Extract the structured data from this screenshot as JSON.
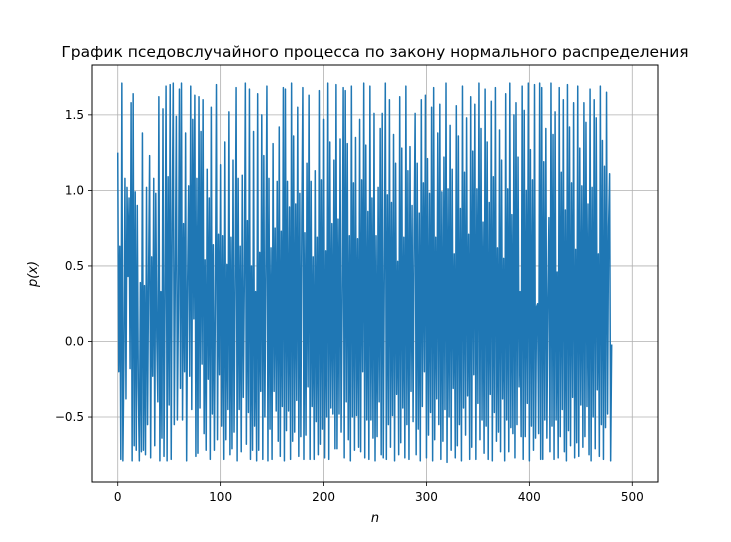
{
  "chart_data": {
    "type": "line",
    "title": "График пседовслучайного процесса по закону нормального распределения",
    "xlabel": "n",
    "ylabel": "p(x)",
    "xlim": [
      -25,
      525
    ],
    "ylim": [
      -0.93,
      1.83
    ],
    "xticks": [
      0,
      100,
      200,
      300,
      400,
      500
    ],
    "xtick_labels": [
      "0",
      "100",
      "200",
      "300",
      "400",
      "500"
    ],
    "yticks": [
      -0.5,
      0.0,
      0.5,
      1.0,
      1.5
    ],
    "ytick_labels": [
      "−0.5",
      "0.0",
      "0.5",
      "1.0",
      "1.5"
    ],
    "grid": true,
    "line_color": "#1f77b4",
    "series": [
      {
        "x_start": 0,
        "x_step": 1,
        "values": [
          1.25,
          -0.2,
          0.63,
          -0.78,
          1.71,
          -0.79,
          -0.12,
          1.08,
          -0.38,
          1.02,
          0.43,
          0.95,
          -0.18,
          1.58,
          -0.79,
          1.64,
          -0.69,
          0.99,
          -0.72,
          0.9,
          -0.3,
          -0.79,
          0.39,
          -0.73,
          1.38,
          -0.72,
          0.37,
          -0.75,
          1.02,
          -0.55,
          0.43,
          1.23,
          -0.77,
          0.56,
          -0.23,
          1.08,
          -0.69,
          0.98,
          0.03,
          -0.4,
          1.62,
          -0.79,
          0.33,
          -0.64,
          1.54,
          -0.76,
          0.25,
          1.69,
          -0.79,
          1.09,
          -0.42,
          1.7,
          -0.78,
          0.79,
          1.71,
          -0.55,
          0.43,
          1.49,
          -0.52,
          0.22,
          1.67,
          -0.31,
          1.71,
          -0.52,
          0.78,
          -0.2,
          1.38,
          -0.79,
          0.4,
          1.03,
          -0.23,
          1.69,
          -0.45,
          1.47,
          0.15,
          1.63,
          -0.76,
          1.08,
          -0.74,
          1.62,
          -0.44,
          1.39,
          -0.15,
          1.6,
          -0.61,
          0.54,
          -0.72,
          1.14,
          -0.25,
          0.95,
          -0.78,
          1.55,
          -0.48,
          0.64,
          -0.72,
          0.28,
          1.7,
          -0.65,
          0.71,
          -0.22,
          1.17,
          -0.56,
          0.7,
          -0.78,
          1.32,
          -0.65,
          0.51,
          -0.45,
          1.52,
          -0.75,
          0.69,
          -0.71,
          1.2,
          -0.6,
          0.37,
          1.68,
          -0.79,
          1.08,
          -0.45,
          0.63,
          -0.73,
          1.1,
          -0.37,
          0.38,
          1.71,
          -0.68,
          0.8,
          -0.47,
          1.67,
          -0.78,
          0.5,
          -0.72,
          1.39,
          -0.56,
          0.33,
          -0.79,
          1.64,
          -0.72,
          0.59,
          -0.33,
          1.5,
          -0.78,
          1.23,
          -0.5,
          0.48,
          1.69,
          -0.79,
          1.08,
          -0.58,
          0.62,
          -0.78,
          1.31,
          -0.33,
          0.75,
          -0.46,
          1.06,
          -0.66,
          1.42,
          -0.76,
          0.73,
          -0.43,
          1.68,
          -0.79,
          1.67,
          -0.59,
          1.06,
          -0.46,
          0.89,
          -0.78,
          1.71,
          -0.66,
          1.36,
          -0.6,
          0.91,
          -0.39,
          1.55,
          -0.76,
          0.98,
          -0.63,
          0.8,
          1.68,
          -0.78,
          0.72,
          -0.62,
          1.18,
          -0.3,
          1.63,
          -0.78,
          1.06,
          -0.43,
          0.56,
          -0.78,
          1.13,
          -0.53,
          0.69,
          -0.75,
          1.66,
          -0.68,
          1.07,
          -0.58,
          1.47,
          -0.77,
          0.6,
          -0.5,
          1.71,
          -0.78,
          1.32,
          -0.44,
          0.78,
          -0.48,
          1.2,
          -0.71,
          1.7,
          -0.71,
          0.81,
          -0.48,
          1.34,
          -0.6,
          0.26,
          1.68,
          -0.77,
          1.66,
          -0.4,
          1.31,
          -0.65,
          0.7,
          -0.79,
          1.69,
          -0.5,
          1.05,
          -0.72,
          1.35,
          -0.49,
          0.68,
          -0.7,
          1.47,
          -0.73,
          1.07,
          -0.2,
          1.71,
          -0.77,
          1.3,
          -0.52,
          0.86,
          -0.78,
          1.69,
          -0.52,
          0.95,
          -0.64,
          1.51,
          -0.79,
          0.7,
          -0.63,
          1.02,
          -0.4,
          1.41,
          -0.75,
          1.51,
          -0.77,
          0.44,
          1.71,
          -0.78,
          0.97,
          -0.55,
          1.6,
          -0.7,
          0.92,
          -0.49,
          1.37,
          -0.79,
          1.18,
          -0.35,
          0.53,
          -0.75,
          1.62,
          -0.67,
          1.28,
          -0.44,
          0.69,
          -0.77,
          1.69,
          -0.55,
          1.13,
          -0.78,
          1.29,
          -0.33,
          0.9,
          -0.53,
          0.72,
          1.51,
          -0.75,
          1.18,
          -0.58,
          0.85,
          -0.79,
          1.6,
          -0.43,
          1.05,
          -0.2,
          1.63,
          -0.77,
          1.21,
          -0.62,
          0.98,
          -0.47,
          1.55,
          -0.79,
          1.68,
          -0.65,
          0.69,
          -0.38,
          1.38,
          -0.55,
          1.57,
          -0.78,
          0.99,
          -0.66,
          1.22,
          -0.45,
          1.71,
          -0.8,
          1.01,
          -0.5,
          1.43,
          -0.72,
          1.14,
          -0.31,
          0.58,
          -0.77,
          1.56,
          -0.69,
          1.36,
          -0.55,
          0.88,
          -0.79,
          1.69,
          -0.44,
          1.12,
          -0.62,
          1.48,
          -0.36,
          0.71,
          -0.78,
          1.62,
          -0.7,
          1.26,
          -0.22,
          1.57,
          -0.78,
          1.01,
          -0.41,
          1.71,
          -0.65,
          1.41,
          -0.52,
          0.79,
          -0.74,
          1.67,
          -0.56,
          1.32,
          -0.78,
          0.92,
          -0.35,
          1.59,
          -0.79,
          1.09,
          -0.47,
          1.68,
          -0.66,
          0.62,
          -0.6,
          1.4,
          -0.73,
          1.2,
          -0.38,
          0.55,
          -0.79,
          1.64,
          -0.52,
          1.01,
          -0.73,
          1.71,
          -0.57,
          0.84,
          -0.61,
          1.5,
          -0.77,
          1.58,
          -0.55,
          1.22,
          -0.3,
          0.33,
          -0.63,
          1.69,
          -0.78,
          1.53,
          -0.63,
          1.0,
          -0.41,
          1.71,
          -0.79,
          1.27,
          -0.56,
          1.07,
          -0.72,
          1.7,
          -0.64,
          0.23,
          0.25,
          -0.61,
          1.71,
          -0.78,
          1.68,
          -0.78,
          1.19,
          -0.52,
          1.41,
          -0.64,
          0.29,
          0.82,
          -0.73,
          1.71,
          -0.56,
          1.37,
          -0.78,
          1.52,
          -0.52,
          0.46,
          -0.77,
          1.68,
          -0.63,
          1.12,
          -0.45,
          1.6,
          -0.73,
          0.87,
          -0.79,
          1.7,
          -0.59,
          1.42,
          -0.69,
          1.05,
          -0.37,
          1.58,
          -0.77,
          0.61,
          -0.67,
          1.69,
          -0.76,
          1.28,
          -0.42,
          1.03,
          -0.7,
          1.58,
          -0.63,
          1.45,
          -0.43,
          0.91,
          -0.75,
          1.67,
          -0.79,
          1.02,
          -0.5,
          1.6,
          -0.71,
          1.48,
          -0.32,
          0.58,
          -0.76,
          1.69,
          -0.55,
          1.33,
          -0.78,
          1.16,
          -0.57,
          1.65,
          -0.48,
          0.76,
          1.11,
          -0.79,
          -0.02
        ]
      }
    ]
  }
}
